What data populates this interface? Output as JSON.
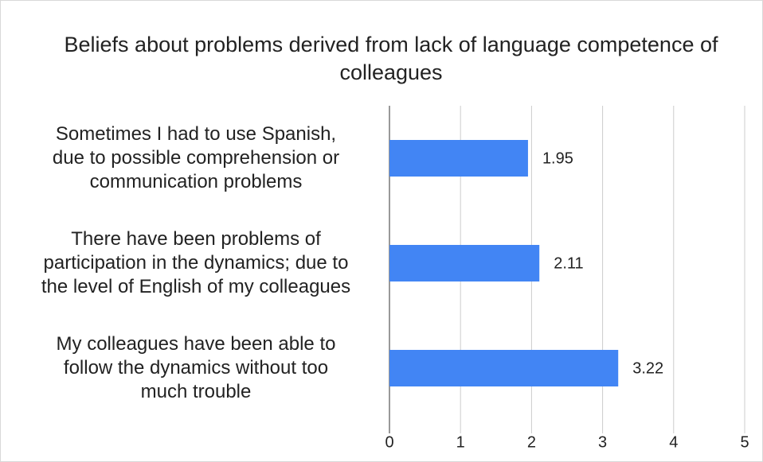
{
  "chart_data": {
    "type": "barh",
    "title": "Beliefs about problems derived from lack of language competence of colleagues",
    "categories": [
      "Sometimes I had to use Spanish,\ndue to possible comprehension or\ncommunication problems",
      "There have been problems of\nparticipation in the dynamics;  due to\nthe level of English of my colleagues",
      "My colleagues have been able to\nfollow the dynamics without too\nmuch trouble"
    ],
    "values": [
      1.95,
      2.11,
      3.22
    ],
    "color": "#4285f4",
    "xlim": [
      0,
      5
    ],
    "xticks": [
      0,
      1,
      2,
      3,
      4,
      5
    ],
    "grid": true
  }
}
